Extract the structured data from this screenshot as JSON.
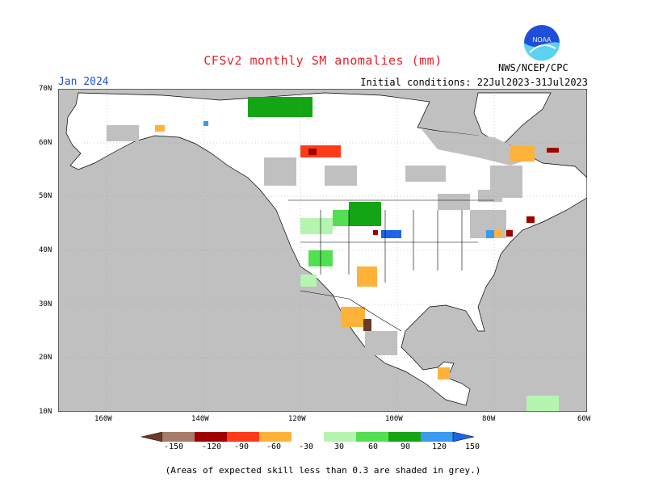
{
  "header": {
    "title": "CFSv2 monthly SM anomalies (mm)",
    "month": "Jan 2024",
    "agency": "NWS/NCEP/CPC",
    "initial_conditions": "Initial conditions: 22Jul2023-31Jul2023",
    "logo_text": "NOAA"
  },
  "map": {
    "lat_labels": [
      "70N",
      "60N",
      "50N",
      "40N",
      "30N",
      "20N",
      "10N"
    ],
    "lon_labels": [
      "160W",
      "140W",
      "120W",
      "100W",
      "80W",
      "60W"
    ],
    "colors": {
      "ocean": "#c0c0c0",
      "land_skill_low": "#c0c0c0",
      "land_neutral": "#ffffff",
      "border": "#000000"
    }
  },
  "colorbar": {
    "labels": [
      "-150",
      "-120",
      "-90",
      "-60",
      "-30",
      "30",
      "60",
      "90",
      "120",
      "150"
    ],
    "colors": [
      "#6b3a2a",
      "#a67b6a",
      "#a00000",
      "#ff3a1a",
      "#ffb23a",
      "#ffffff",
      "#b6f5b0",
      "#52e052",
      "#13a513",
      "#3a9aef",
      "#1f64e6"
    ]
  },
  "footnote": "(Areas of expected skill less than 0.3 are shaded in grey.)"
}
